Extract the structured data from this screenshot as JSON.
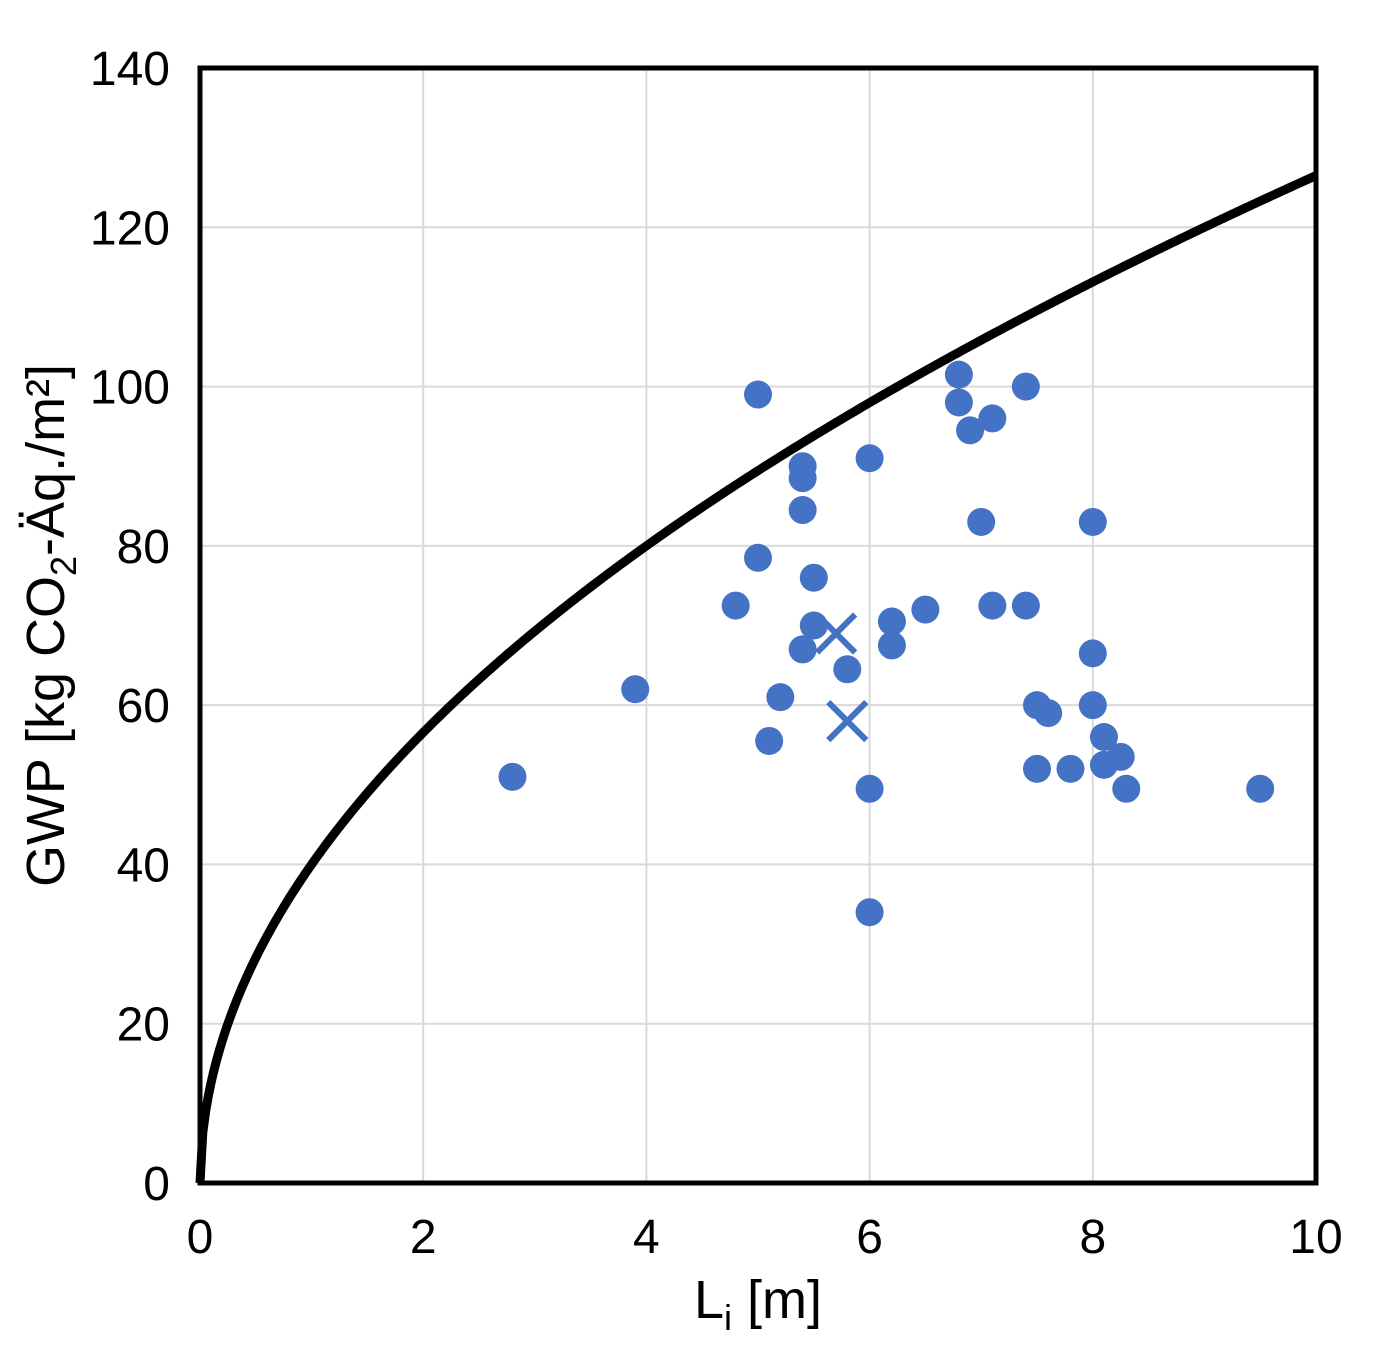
{
  "figure": {
    "background": "#ffffff",
    "text_color": "#000000"
  },
  "chart_data": {
    "type": "scatter",
    "title": "",
    "xlabel_parts": [
      {
        "t": "L"
      },
      {
        "t": "i",
        "s": "sub"
      },
      {
        "t": " [m]"
      }
    ],
    "ylabel_parts": [
      {
        "t": "GWP [kg CO"
      },
      {
        "t": "2",
        "s": "sub"
      },
      {
        "t": "-Äq./m²]"
      }
    ],
    "xlabel_text": "Li [m]",
    "ylabel_text": "GWP [kg CO2-Aeq./m2]",
    "axes": {
      "xlim": [
        0,
        10
      ],
      "ylim": [
        0,
        140
      ],
      "x_ticks": [
        0,
        2,
        4,
        6,
        8,
        10
      ],
      "y_ticks": [
        0,
        20,
        40,
        60,
        80,
        100,
        120,
        140
      ],
      "grid_on": true,
      "grid_color": "#d9d9d9",
      "axis_color": "#000000",
      "legend": "none"
    },
    "series": [
      {
        "name": "gwp-scatter-points",
        "marker": "circle",
        "color": "#4472C4",
        "marker_size": 14,
        "points": [
          [
            2.8,
            51
          ],
          [
            3.9,
            62
          ],
          [
            4.8,
            72.5
          ],
          [
            5.0,
            78.5
          ],
          [
            5.0,
            99
          ],
          [
            5.1,
            55.5
          ],
          [
            5.2,
            61
          ],
          [
            5.4,
            67
          ],
          [
            5.4,
            84.5
          ],
          [
            5.4,
            88.5
          ],
          [
            5.4,
            90
          ],
          [
            5.5,
            70
          ],
          [
            5.5,
            76
          ],
          [
            5.8,
            64.5
          ],
          [
            6.0,
            34
          ],
          [
            6.0,
            49.5
          ],
          [
            6.0,
            91
          ],
          [
            6.2,
            67.5
          ],
          [
            6.2,
            70.5
          ],
          [
            6.5,
            72
          ],
          [
            6.8,
            98
          ],
          [
            6.8,
            101.5
          ],
          [
            6.9,
            94.5
          ],
          [
            7.0,
            83
          ],
          [
            7.1,
            72.5
          ],
          [
            7.1,
            96
          ],
          [
            7.4,
            72.5
          ],
          [
            7.4,
            100
          ],
          [
            7.5,
            52
          ],
          [
            7.5,
            60
          ],
          [
            7.6,
            59
          ],
          [
            7.8,
            52
          ],
          [
            8.0,
            60
          ],
          [
            8.0,
            66.5
          ],
          [
            8.0,
            83
          ],
          [
            8.1,
            52.5
          ],
          [
            8.1,
            56
          ],
          [
            8.25,
            53.5
          ],
          [
            8.3,
            49.5
          ],
          [
            9.5,
            49.5
          ]
        ]
      },
      {
        "name": "gwp-x-markers",
        "marker": "x",
        "color": "#4472C4",
        "marker_size": 19,
        "stroke_width": 6,
        "points": [
          [
            5.7,
            69
          ],
          [
            5.8,
            58
          ]
        ]
      }
    ],
    "curve": {
      "name": "limit-curve",
      "formula": "y = 40 * sqrt(x)",
      "coefficient": 40,
      "exponent": 0.5,
      "x_range": [
        0,
        10
      ],
      "color": "#000000",
      "stroke_width": 9
    }
  }
}
